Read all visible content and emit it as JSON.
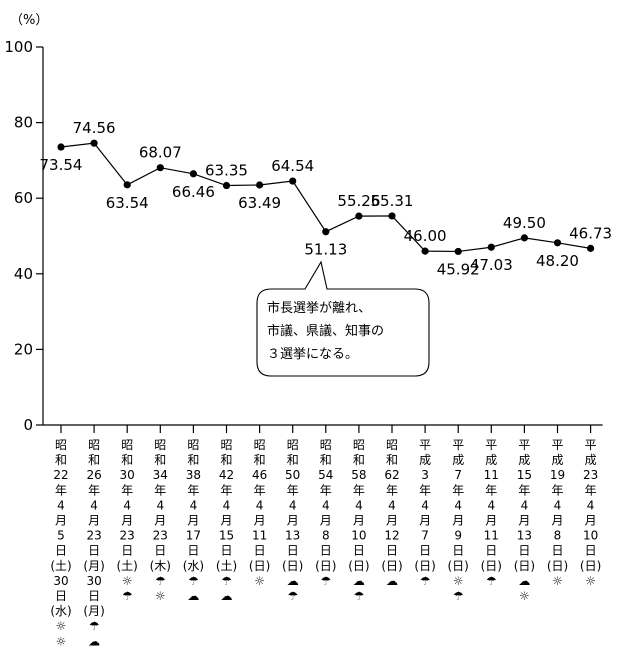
{
  "chart_data": {
    "type": "line",
    "ylabel": "（%）",
    "ylim": [
      0,
      100
    ],
    "yticks": [
      0,
      20,
      40,
      60,
      80,
      100
    ],
    "grid": false,
    "categories": [
      "昭和22年4月5日(土)",
      "昭和26年4月23日(月)",
      "昭和30年4月23日(土)",
      "昭和34年4月23日(木)",
      "昭和38年4月17日(水)",
      "昭和42年4月15日(土)",
      "昭和46年4月11日(日)",
      "昭和50年4月13日(日)",
      "昭和54年4月8日(日)",
      "昭和58年4月10日(日)",
      "昭和62年4月12日(日)",
      "平成3年4月7日(日)",
      "平成7年4月9日(日)",
      "平成11年4月11日(日)",
      "平成15年4月13日(日)",
      "平成19年4月8日(日)",
      "平成23年4月10日(日)"
    ],
    "x_label_columns": [
      [
        "昭",
        "和",
        "22",
        "年",
        "4",
        "月",
        "5",
        "日",
        "(土)",
        "30",
        "日",
        "(水)",
        "☼",
        "☼"
      ],
      [
        "昭",
        "和",
        "26",
        "年",
        "4",
        "月",
        "23",
        "日",
        "(月)",
        "30",
        "日",
        "(月)",
        "☂",
        "☁"
      ],
      [
        "昭",
        "和",
        "30",
        "年",
        "4",
        "月",
        "23",
        "日",
        "(土)",
        "☼",
        "☂"
      ],
      [
        "昭",
        "和",
        "34",
        "年",
        "4",
        "月",
        "23",
        "日",
        "(木)",
        "☂",
        "☼"
      ],
      [
        "昭",
        "和",
        "38",
        "年",
        "4",
        "月",
        "17",
        "日",
        "(水)",
        "☂",
        "☁"
      ],
      [
        "昭",
        "和",
        "42",
        "年",
        "4",
        "月",
        "15",
        "日",
        "(土)",
        "☂",
        "☁"
      ],
      [
        "昭",
        "和",
        "46",
        "年",
        "4",
        "月",
        "11",
        "日",
        "(日)",
        "☼"
      ],
      [
        "昭",
        "和",
        "50",
        "年",
        "4",
        "月",
        "13",
        "日",
        "(日)",
        "☁",
        "☂"
      ],
      [
        "昭",
        "和",
        "54",
        "年",
        "4",
        "月",
        "8",
        "日",
        "(日)",
        "☂"
      ],
      [
        "昭",
        "和",
        "58",
        "年",
        "4",
        "月",
        "10",
        "日",
        "(日)",
        "☁",
        "☂"
      ],
      [
        "昭",
        "和",
        "62",
        "年",
        "4",
        "月",
        "12",
        "日",
        "(日)",
        "☁"
      ],
      [
        "平",
        "成",
        "3",
        "年",
        "4",
        "月",
        "7",
        "日",
        "(日)",
        "☂"
      ],
      [
        "平",
        "成",
        "7",
        "年",
        "4",
        "月",
        "9",
        "日",
        "(日)",
        "☼",
        "☂"
      ],
      [
        "平",
        "成",
        "11",
        "年",
        "4",
        "月",
        "11",
        "日",
        "(日)",
        "☂"
      ],
      [
        "平",
        "成",
        "15",
        "年",
        "4",
        "月",
        "13",
        "日",
        "(日)",
        "☁",
        "☼"
      ],
      [
        "平",
        "成",
        "19",
        "年",
        "4",
        "月",
        "8",
        "日",
        "(日)",
        "☼"
      ],
      [
        "平",
        "成",
        "23",
        "年",
        "4",
        "月",
        "10",
        "日",
        "(日)",
        "☼"
      ]
    ],
    "series": [
      {
        "values": [
          73.54,
          74.56,
          63.54,
          68.07,
          66.46,
          63.35,
          63.49,
          64.54,
          51.13,
          55.26,
          55.31,
          46.0,
          45.92,
          47.03,
          49.5,
          48.2,
          46.73
        ],
        "labels": [
          "73.54",
          "74.56",
          "63.54",
          "68.07",
          "66.46",
          "63.35",
          "63.49",
          "64.54",
          "51.13",
          "55.26",
          "55.31",
          "46.00",
          "45.92",
          "47.03",
          "49.50",
          "48.20",
          "46.73"
        ],
        "label_placement": [
          "below",
          "above",
          "below",
          "above",
          "below",
          "above",
          "below",
          "above",
          "below",
          "above",
          "above",
          "above",
          "below",
          "below",
          "above",
          "below",
          "above"
        ]
      }
    ],
    "annotation": {
      "text_lines": [
        "市長選挙が離れ、",
        "市議、県議、知事の",
        "３選挙になる。"
      ],
      "points_to_index": 8
    }
  }
}
